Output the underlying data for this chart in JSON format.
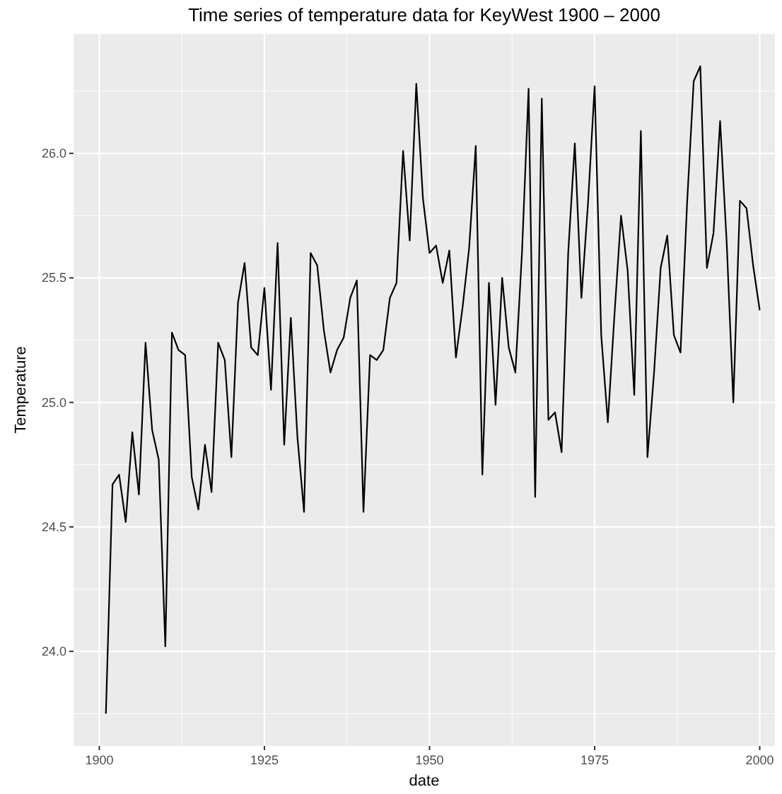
{
  "chart_data": {
    "type": "line",
    "title": "Time series of temperature data for KeyWest 1900 – 2000",
    "xlabel": "date",
    "ylabel": "Temperature",
    "x": [
      1901,
      1902,
      1903,
      1904,
      1905,
      1906,
      1907,
      1908,
      1909,
      1910,
      1911,
      1912,
      1913,
      1914,
      1915,
      1916,
      1917,
      1918,
      1919,
      1920,
      1921,
      1922,
      1923,
      1924,
      1925,
      1926,
      1927,
      1928,
      1929,
      1930,
      1931,
      1932,
      1933,
      1934,
      1935,
      1936,
      1937,
      1938,
      1939,
      1940,
      1941,
      1942,
      1943,
      1944,
      1945,
      1946,
      1947,
      1948,
      1949,
      1950,
      1951,
      1952,
      1953,
      1954,
      1955,
      1956,
      1957,
      1958,
      1959,
      1960,
      1961,
      1962,
      1963,
      1964,
      1965,
      1966,
      1967,
      1968,
      1969,
      1970,
      1971,
      1972,
      1973,
      1974,
      1975,
      1976,
      1977,
      1978,
      1979,
      1980,
      1981,
      1982,
      1983,
      1984,
      1985,
      1986,
      1987,
      1988,
      1989,
      1990,
      1991,
      1992,
      1993,
      1994,
      1995,
      1996,
      1997,
      1998,
      1999,
      2000
    ],
    "series": [
      {
        "color": "#000000",
        "values": [
          23.75,
          24.67,
          24.71,
          24.52,
          24.88,
          24.63,
          25.24,
          24.89,
          24.77,
          24.02,
          25.28,
          25.21,
          25.19,
          24.7,
          24.57,
          24.83,
          24.64,
          25.24,
          25.17,
          24.78,
          25.4,
          25.56,
          25.22,
          25.19,
          25.46,
          25.05,
          25.64,
          24.83,
          25.34,
          24.86,
          24.56,
          25.6,
          25.55,
          25.29,
          25.12,
          25.21,
          25.26,
          25.42,
          25.49,
          24.56,
          25.19,
          25.17,
          25.21,
          25.42,
          25.48,
          26.01,
          25.65,
          26.28,
          25.82,
          25.6,
          25.63,
          25.48,
          25.61,
          25.18,
          25.38,
          25.62,
          26.03,
          24.71,
          25.48,
          24.99,
          25.5,
          25.22,
          25.12,
          25.6,
          26.26,
          24.62,
          26.22,
          24.93,
          24.96,
          24.8,
          25.6,
          26.04,
          25.42,
          25.8,
          26.27,
          25.27,
          24.92,
          25.35,
          25.75,
          25.53,
          25.03,
          26.09,
          24.78,
          25.12,
          25.54,
          25.67,
          25.27,
          25.2,
          25.8,
          26.29,
          26.35,
          25.54,
          25.68,
          26.13,
          25.64,
          25.0,
          25.81,
          25.78,
          25.55,
          25.37
        ]
      }
    ],
    "xlim": [
      1896.1,
      2002.3
    ],
    "ylim": [
      23.62,
      26.48
    ],
    "xticks": [
      1900,
      1925,
      1950,
      1975,
      2000
    ],
    "yticks": [
      {
        "value": 24,
        "label": "24.0"
      },
      {
        "value": 24.5,
        "label": "24.5"
      },
      {
        "value": 25,
        "label": "25.0"
      },
      {
        "value": 25.5,
        "label": "25.5"
      },
      {
        "value": 26,
        "label": "26.0"
      }
    ],
    "grid": true
  }
}
